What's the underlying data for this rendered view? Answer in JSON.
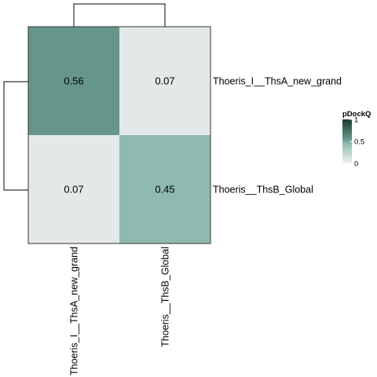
{
  "chart_data": {
    "type": "heatmap",
    "rows": [
      "Thoeris_I__ThsA_new_grand",
      "Thoeris__ThsB_Global"
    ],
    "columns": [
      "Thoeris_I__ThsA_new_grand",
      "Thoeris__ThsB_Global"
    ],
    "values": [
      [
        0.56,
        0.07
      ],
      [
        0.07,
        0.45
      ]
    ],
    "cell_labels": [
      [
        "0.56",
        "0.07"
      ],
      [
        "0.07",
        "0.45"
      ]
    ],
    "row_dendrogram": true,
    "column_dendrogram": true,
    "color_scale": {
      "min": 0,
      "max": 1,
      "colors": [
        "#f2f2f2",
        "#8fbab1",
        "#66968a",
        "#1c3b33"
      ],
      "stops": [
        0,
        0.45,
        0.56,
        1
      ]
    },
    "legend": {
      "title": "pDockQ",
      "position": "right",
      "ticks": [
        "0",
        "0.5",
        "1"
      ],
      "tick_values": [
        0,
        0.5,
        1
      ]
    }
  }
}
